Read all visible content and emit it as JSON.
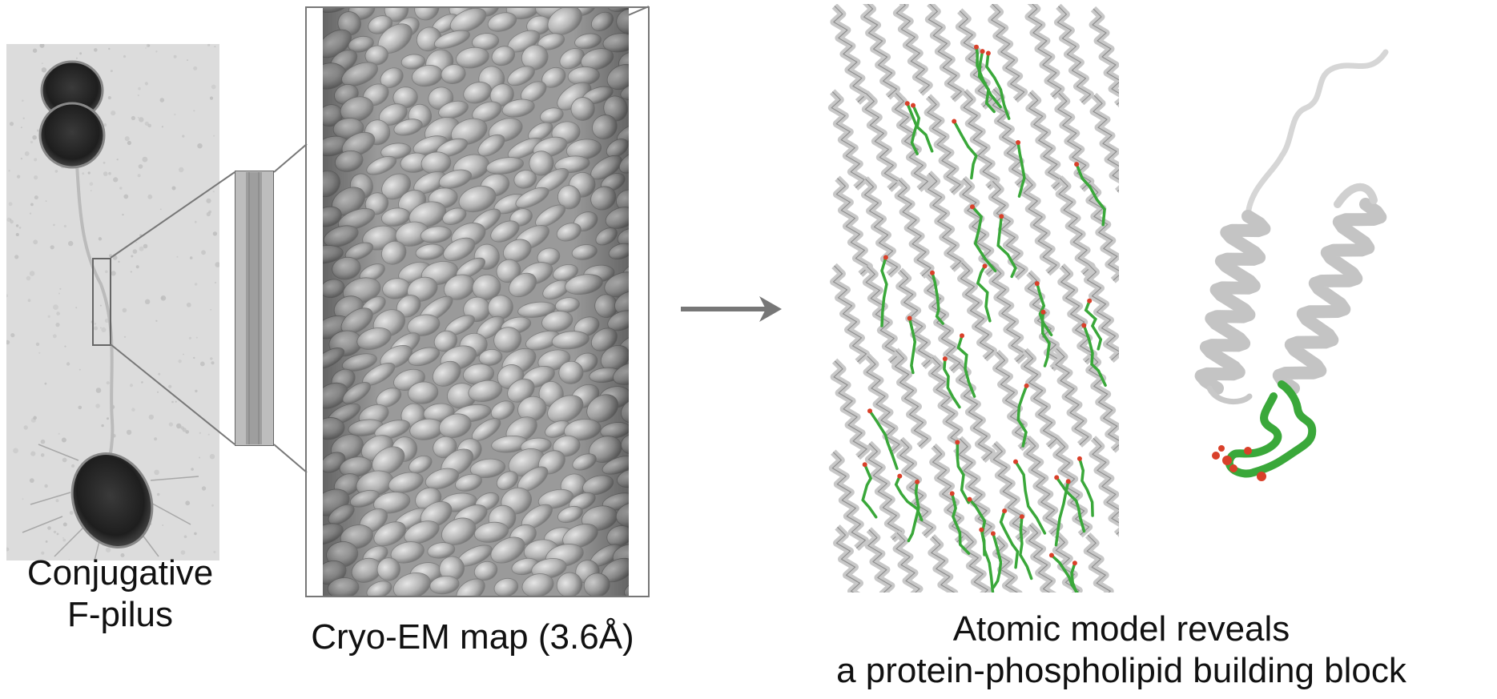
{
  "captions": {
    "micrograph_line1": "Conjugative",
    "micrograph_line2": "F-pilus",
    "cryoem": "Cryo-EM map (3.6Å)",
    "model_line1": "Atomic model reveals",
    "model_line2": "a protein-phospholipid building block"
  },
  "colors": {
    "lipid": "#3aa83a",
    "phosphate": "#d9402a",
    "protein": "#c8c8c8",
    "density": "#a9a9a9",
    "frame": "#777777",
    "background": "#ffffff"
  },
  "icons": [
    "bacterium-cell",
    "pilus-filament",
    "zoom-box",
    "arrow-right",
    "helix-ribbon"
  ]
}
